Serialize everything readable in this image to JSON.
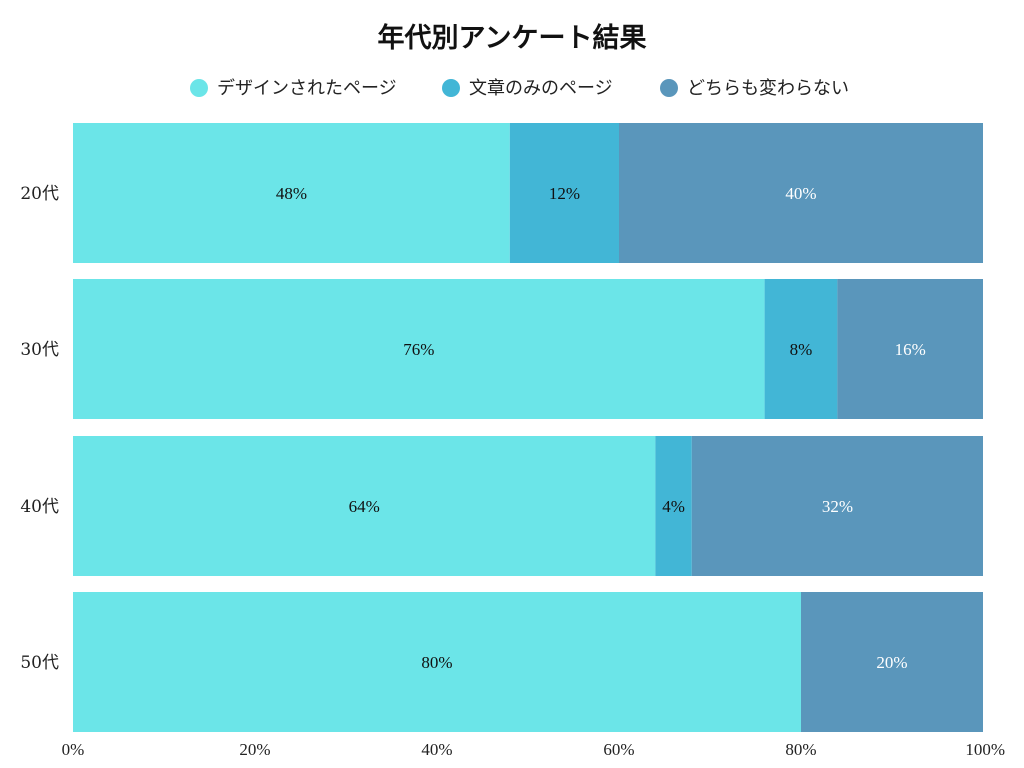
{
  "chart_data": {
    "type": "bar",
    "orientation": "horizontal",
    "stacked": true,
    "title": "年代別アンケート結果",
    "categories": [
      "20代",
      "30代",
      "40代",
      "50代"
    ],
    "series": [
      {
        "name": "デザインされたページ",
        "color": "#6be5e8",
        "label_color": "#111111",
        "values": [
          48,
          76,
          64,
          80
        ]
      },
      {
        "name": "文章のみのページ",
        "color": "#42b6d6",
        "label_color": "#111111",
        "values": [
          12,
          8,
          4,
          0
        ]
      },
      {
        "name": "どちらも変わらない",
        "color": "#5a96bb",
        "label_color": "#ffffff",
        "values": [
          40,
          16,
          32,
          20
        ]
      }
    ],
    "xlim": [
      0,
      100
    ],
    "x_ticks": [
      0,
      20,
      40,
      60,
      80,
      100
    ],
    "x_tick_labels": [
      "0%",
      "20%",
      "40%",
      "60%",
      "80%",
      "100%"
    ],
    "value_suffix": "%",
    "legend_position": "top",
    "grid": false
  }
}
